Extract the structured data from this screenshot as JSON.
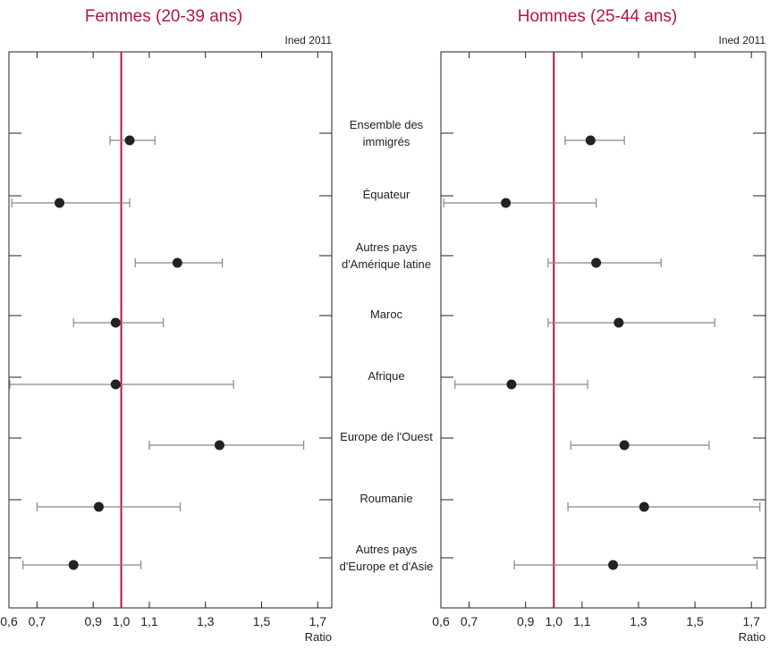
{
  "chart_data": [
    {
      "type": "scatter",
      "title": "Femmes (20-39 ans)",
      "source": "Ined 2011",
      "xlabel": "Ratio",
      "xlim": [
        0.6,
        1.75
      ],
      "xticks": [
        0.6,
        0.7,
        0.9,
        1.0,
        1.1,
        1.3,
        1.5,
        1.7
      ],
      "xtick_labels": [
        "0,6",
        "0,7",
        "0,9",
        "1,0",
        "1,1",
        "1,3",
        "1,5",
        "1,7"
      ],
      "reference_line": 1.0,
      "reference_color": "#b5134b",
      "points": [
        {
          "category": "Ensemble des immigrés",
          "value": 1.03,
          "lower": 0.96,
          "upper": 1.12
        },
        {
          "category": "Équateur",
          "value": 0.78,
          "lower": 0.61,
          "upper": 1.03
        },
        {
          "category": "Autres pays d'Amérique latine",
          "value": 1.2,
          "lower": 1.05,
          "upper": 1.36
        },
        {
          "category": "Maroc",
          "value": 0.98,
          "lower": 0.83,
          "upper": 1.15
        },
        {
          "category": "Afrique",
          "value": 0.98,
          "lower": 0.6,
          "upper": 1.4
        },
        {
          "category": "Europe de l'Ouest",
          "value": 1.35,
          "lower": 1.1,
          "upper": 1.65
        },
        {
          "category": "Roumanie",
          "value": 0.92,
          "lower": 0.7,
          "upper": 1.21
        },
        {
          "category": "Autres pays d'Europe et d'Asie",
          "value": 0.83,
          "lower": 0.65,
          "upper": 1.07
        }
      ]
    },
    {
      "type": "scatter",
      "title": "Hommes (25-44 ans)",
      "source": "Ined 2011",
      "xlabel": "Ratio",
      "xlim": [
        0.6,
        1.75
      ],
      "xticks": [
        0.6,
        0.7,
        0.9,
        1.0,
        1.1,
        1.3,
        1.5,
        1.7
      ],
      "xtick_labels": [
        "0,6",
        "0,7",
        "0,9",
        "1,0",
        "1,1",
        "1,3",
        "1,5",
        "1,7"
      ],
      "reference_line": 1.0,
      "reference_color": "#b5134b",
      "points": [
        {
          "category": "Ensemble des immigrés",
          "value": 1.13,
          "lower": 1.04,
          "upper": 1.25
        },
        {
          "category": "Équateur",
          "value": 0.83,
          "lower": 0.61,
          "upper": 1.15
        },
        {
          "category": "Autres pays d'Amérique latine",
          "value": 1.15,
          "lower": 0.98,
          "upper": 1.38
        },
        {
          "category": "Maroc",
          "value": 1.23,
          "lower": 0.98,
          "upper": 1.57
        },
        {
          "category": "Afrique",
          "value": 0.85,
          "lower": 0.65,
          "upper": 1.12
        },
        {
          "category": "Europe de l'Ouest",
          "value": 1.25,
          "lower": 1.06,
          "upper": 1.55
        },
        {
          "category": "Roumanie",
          "value": 1.32,
          "lower": 1.05,
          "upper": 1.73
        },
        {
          "category": "Autres pays d'Europe et d'Asie",
          "value": 1.21,
          "lower": 0.86,
          "upper": 1.72
        }
      ]
    }
  ],
  "categories": [
    {
      "lines": [
        "Ensemble des",
        "immigrés"
      ]
    },
    {
      "lines": [
        "Équateur"
      ]
    },
    {
      "lines": [
        "Autres pays",
        "d'Amérique latine"
      ]
    },
    {
      "lines": [
        "Maroc"
      ]
    },
    {
      "lines": [
        "Afrique"
      ]
    },
    {
      "lines": [
        "Europe de l'Ouest"
      ]
    },
    {
      "lines": [
        "Roumanie"
      ]
    },
    {
      "lines": [
        "Autres pays",
        "d'Europe et d'Asie"
      ]
    }
  ]
}
